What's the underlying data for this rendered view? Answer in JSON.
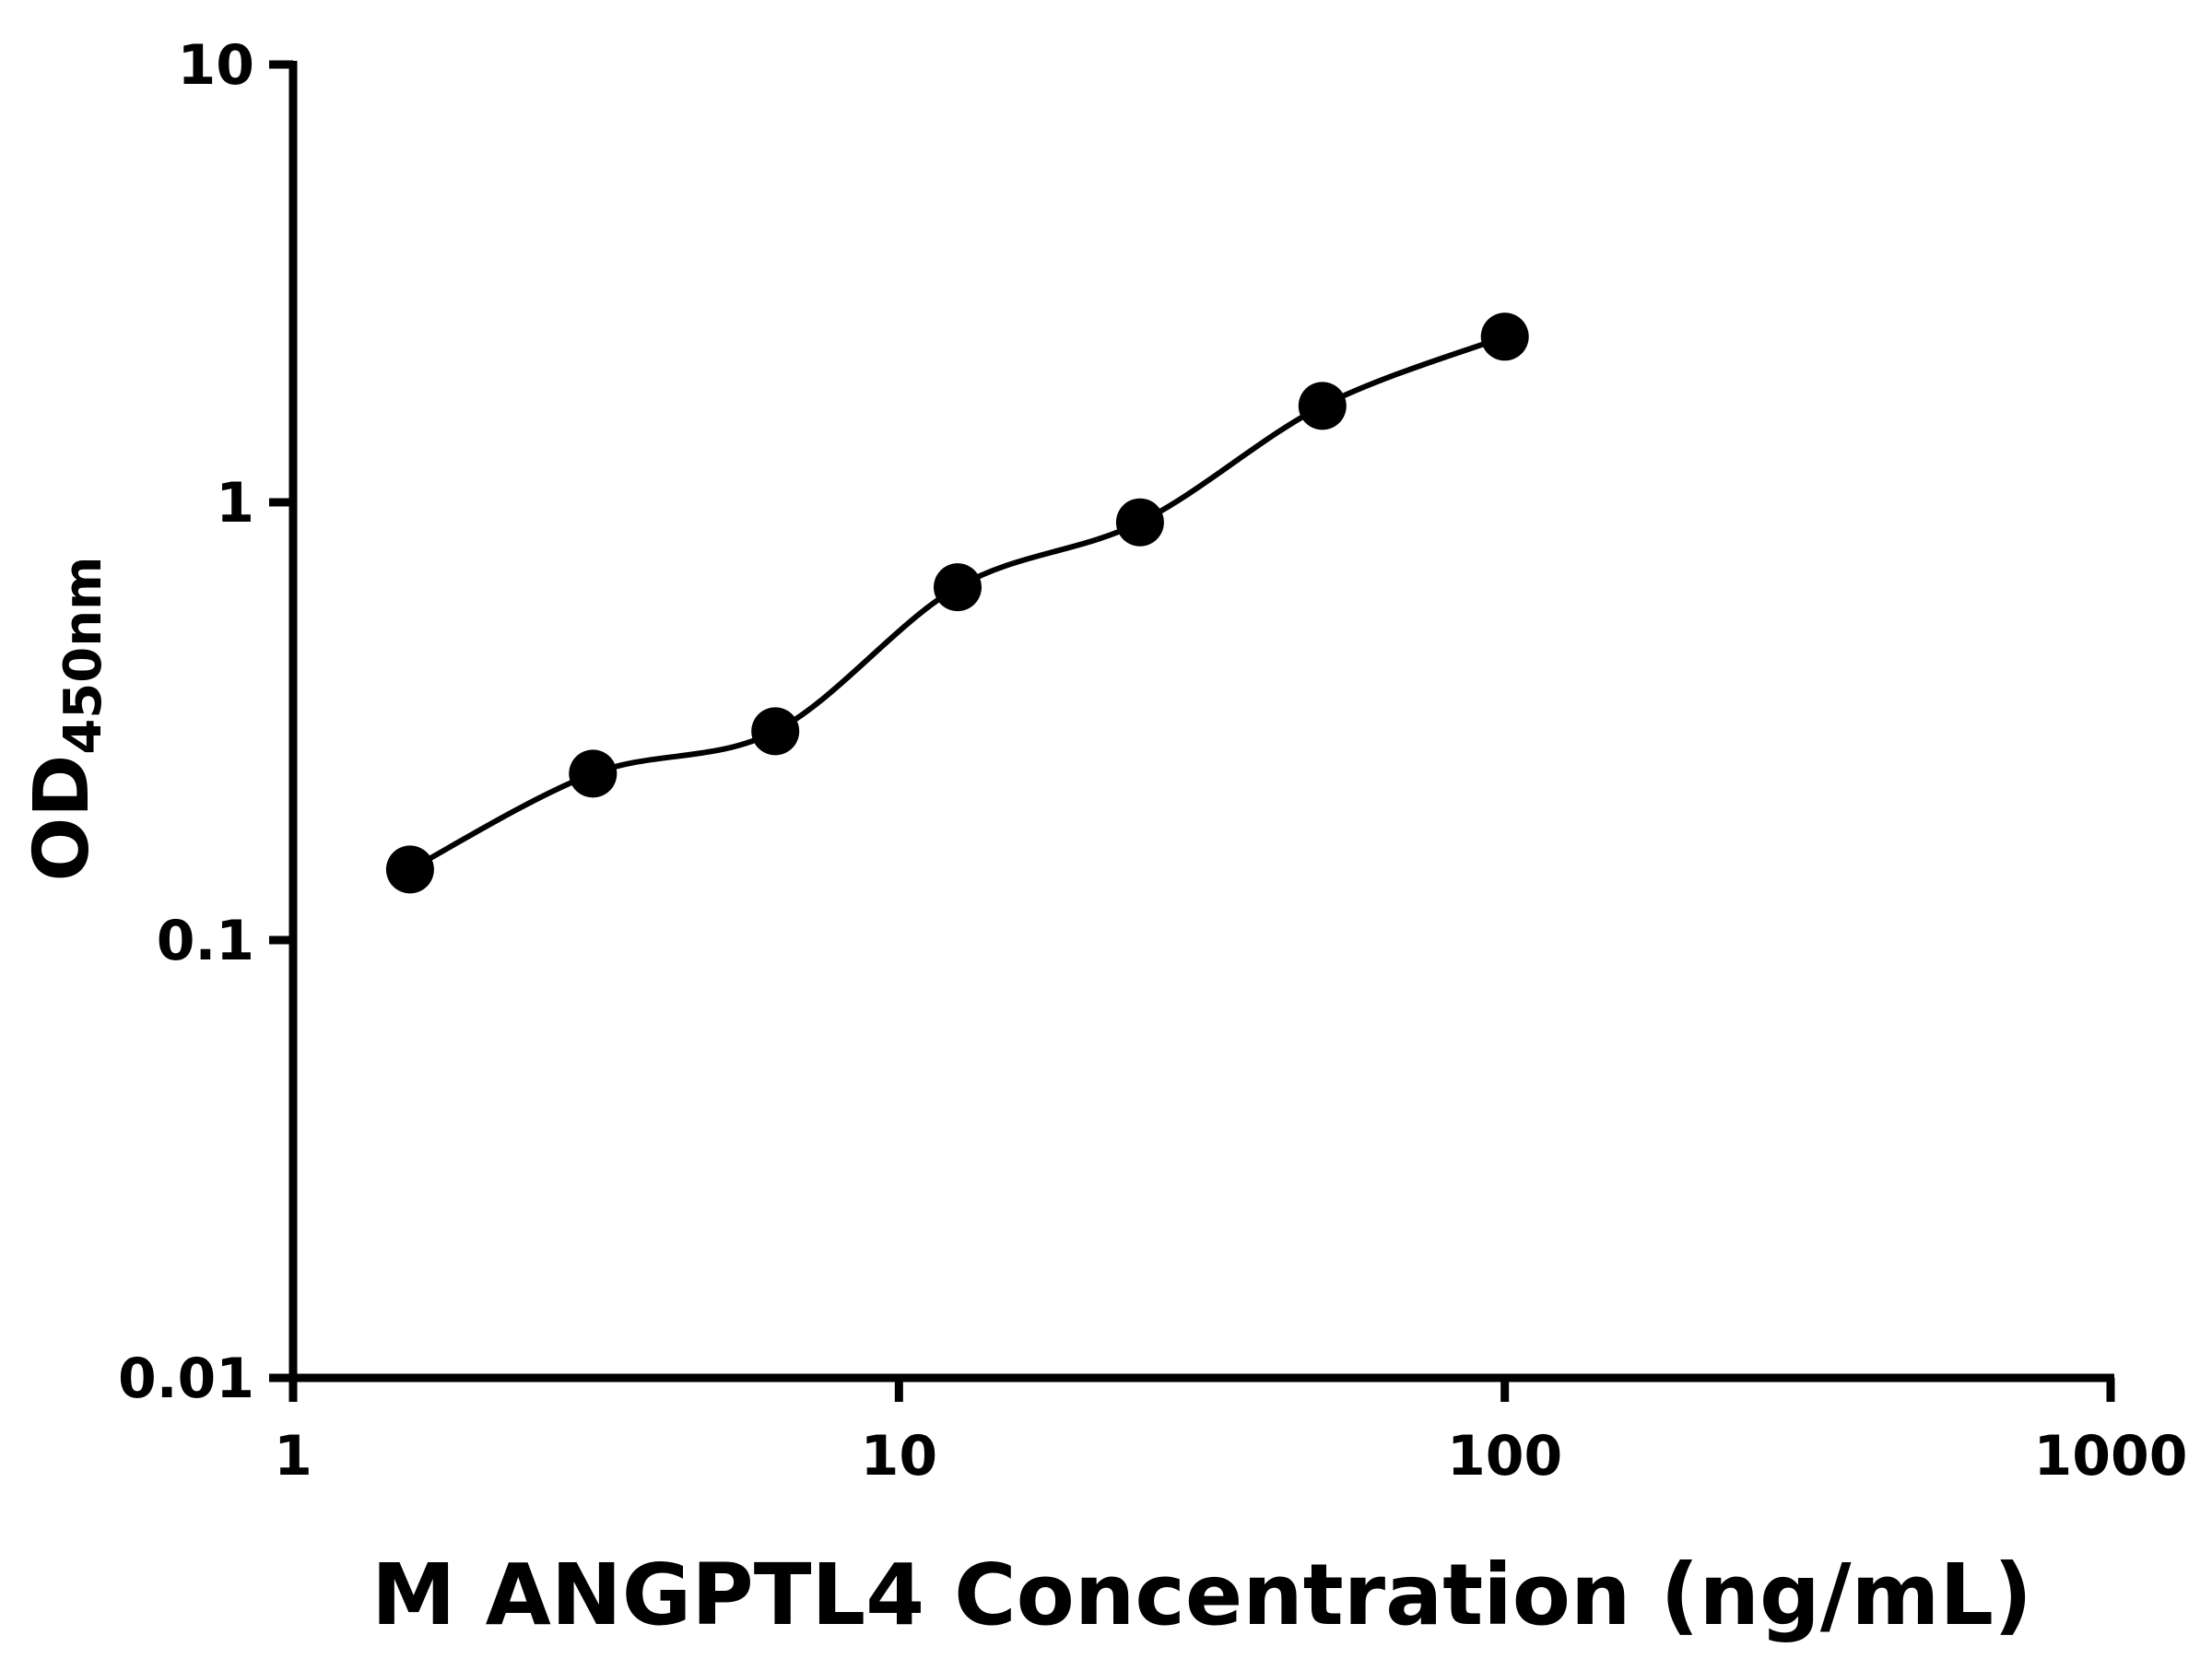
{
  "chart_data": {
    "type": "scatter",
    "title": "",
    "xlabel": "M ANGPTL4 Concentration (ng/mL)",
    "ylabel": "OD",
    "ylabel_subscript": "450nm",
    "x_scale": "log",
    "y_scale": "log",
    "xlim": [
      1,
      1000
    ],
    "ylim": [
      0.01,
      10
    ],
    "x_ticks": [
      1,
      10,
      100,
      1000
    ],
    "x_tick_labels": [
      "1",
      "10",
      "100",
      "1000"
    ],
    "y_ticks": [
      0.01,
      0.1,
      1,
      10
    ],
    "y_tick_labels": [
      "0.01",
      "0.1",
      "1",
      "10"
    ],
    "grid": false,
    "legend": false,
    "series": [
      {
        "marker": "circle-filled",
        "fit": "smooth-curve",
        "color": "#000000",
        "points": [
          {
            "x": 1.56,
            "y": 0.145
          },
          {
            "x": 3.125,
            "y": 0.24
          },
          {
            "x": 6.25,
            "y": 0.3
          },
          {
            "x": 12.5,
            "y": 0.64
          },
          {
            "x": 25,
            "y": 0.9
          },
          {
            "x": 50,
            "y": 1.66
          },
          {
            "x": 100,
            "y": 2.39
          }
        ]
      }
    ],
    "colors": {
      "axis": "#000000",
      "marker": "#000000",
      "curve": "#000000",
      "background": "#ffffff"
    }
  }
}
